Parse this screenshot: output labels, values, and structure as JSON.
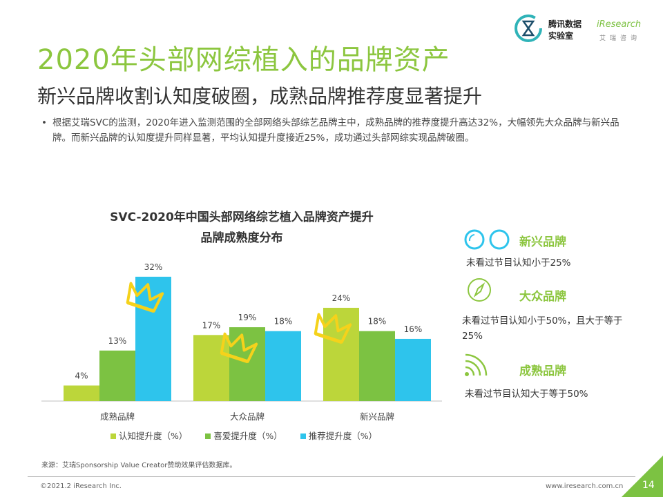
{
  "logos": {
    "tencent_line1": "腾讯数据",
    "tencent_line2": "实验室",
    "iresearch_brand": "iResearch",
    "iresearch_sub": "艾瑞咨询"
  },
  "header": {
    "title": "2020年头部网综植入的品牌资产",
    "subtitle": "新兴品牌收割认知度破圈，成熟品牌推荐度显著提升"
  },
  "bullet": {
    "marker": "•",
    "text": "根据艾瑞SVC的监测，2020年进入监测范围的全部网络头部综艺品牌主中，成熟品牌的推荐度提升高达32%，大幅领先大众品牌与新兴品牌。而新兴品牌的认知度提升同样显著，平均认知提升度接近25%，成功通过头部网综实现品牌破圈。"
  },
  "chart_title": {
    "line1": "SVC-2020年中国头部网络综艺植入品牌资产提升",
    "line2": "品牌成熟度分布"
  },
  "chart_data": {
    "type": "bar",
    "categories": [
      "成熟品牌",
      "大众品牌",
      "新兴品牌"
    ],
    "series": [
      {
        "name": "认知提升度（%）",
        "values": [
          4,
          17,
          24
        ],
        "labels": [
          "4%",
          "17%",
          "24%"
        ],
        "color": "#bcd63a"
      },
      {
        "name": "喜爱提升度（%）",
        "values": [
          13,
          19,
          18
        ],
        "labels": [
          "13%",
          "19%",
          "18%"
        ],
        "color": "#7cc242"
      },
      {
        "name": "推荐提升度（%）",
        "values": [
          32,
          18,
          16
        ],
        "labels": [
          "32%",
          "18%",
          "16%"
        ],
        "color": "#2ec4ec"
      }
    ],
    "ylim": [
      0,
      35
    ],
    "grid": false,
    "legend_position": "bottom",
    "crown_highlights": [
      "成熟品牌:推荐提升度（%）",
      "大众品牌:喜爱提升度（%）",
      "新兴品牌:认知提升度（%）"
    ],
    "crown_color": "#f5d21b"
  },
  "panel": {
    "categories": [
      {
        "title": "新兴品牌",
        "desc": "未看过节目认知小于25%",
        "icon": "two-circles-icon"
      },
      {
        "title": "大众品牌",
        "desc": "未看过节目认知小于50%，且大于等于25%",
        "icon": "compass-icon"
      },
      {
        "title": "成熟品牌",
        "desc": "未看过节目认知大于等于50%",
        "icon": "signal-waves-icon"
      }
    ],
    "accent": "#8cc63f",
    "icon_color": "#2ec4ec"
  },
  "footer": {
    "source": "来源：艾瑞Sponsorship Value Creator赞助效果评估数据库。",
    "copyright": "©2021.2 iResearch Inc.",
    "website": "www.iresearch.com.cn",
    "page_number": "14"
  }
}
